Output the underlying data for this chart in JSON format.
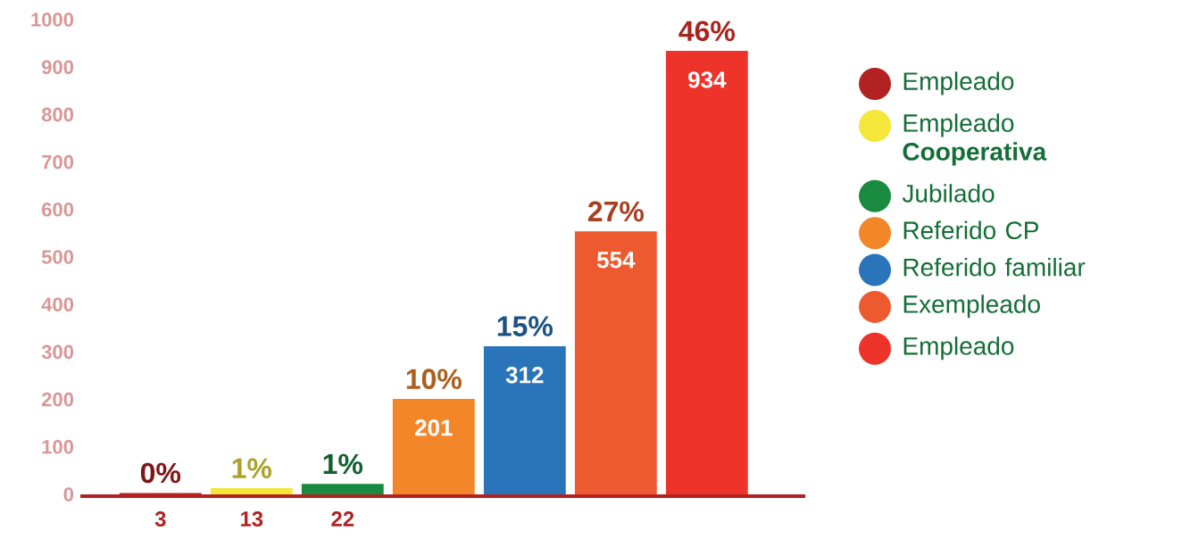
{
  "chart_data": {
    "type": "bar",
    "categories": [
      null,
      null,
      null,
      null,
      null,
      null,
      null
    ],
    "series": [
      {
        "name": "Empleado",
        "color": "#b22222",
        "values": [
          3,
          null,
          null,
          null,
          null,
          null,
          null
        ]
      },
      {
        "name": "Empleado **Cooperativa**",
        "color": "#f5e63a",
        "values": [
          null,
          13,
          null,
          null,
          null,
          null,
          null
        ]
      },
      {
        "name": "Jubilado",
        "color": "#1a8a40",
        "values": [
          null,
          null,
          22,
          null,
          null,
          null,
          null
        ]
      },
      {
        "name": "Referido CP",
        "color": "#f4862a",
        "values": [
          null,
          null,
          null,
          201,
          null,
          null,
          null
        ]
      },
      {
        "name": "Referido familiar",
        "color": "#2a74ba",
        "values": [
          null,
          null,
          null,
          null,
          312,
          null,
          null
        ]
      },
      {
        "name": "Exempleado",
        "color": "#ee5a30",
        "values": [
          null,
          null,
          null,
          null,
          null,
          554,
          null
        ]
      },
      {
        "name": "Empleado",
        "color": "#ee332b",
        "values": [
          null,
          null,
          null,
          null,
          null,
          null,
          934
        ]
      }
    ],
    "annotations": [
      "0%",
      "1%",
      "1%",
      "10%",
      "15%",
      "27%",
      "46%"
    ],
    "ylim": [
      0,
      1000
    ],
    "yticks": [
      0,
      100,
      200,
      300,
      400,
      500,
      600,
      700,
      800,
      900,
      1000
    ],
    "data_labels": true,
    "grid": false,
    "legend": "right"
  }
}
